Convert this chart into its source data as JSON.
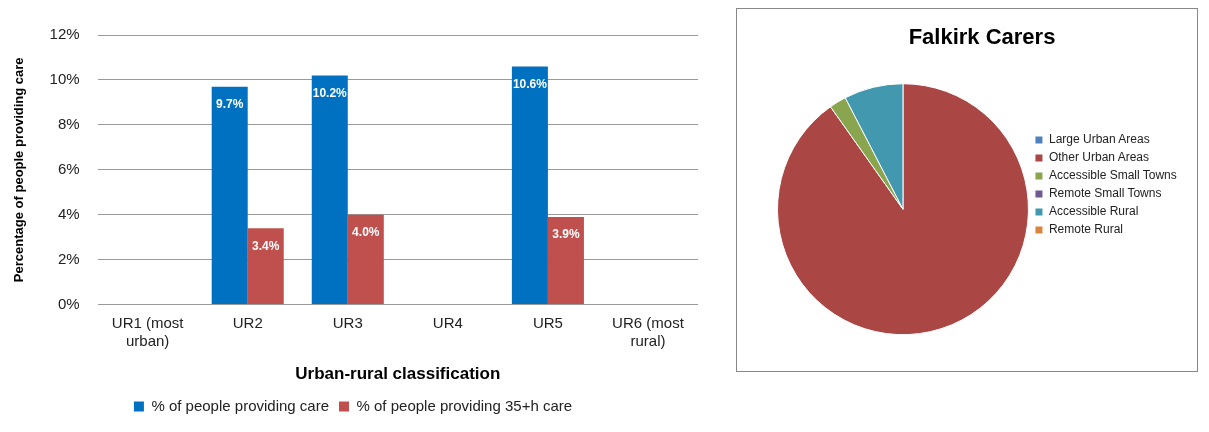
{
  "chart_data": [
    {
      "type": "bar",
      "xlabel": "Urban-rural classification",
      "ylabel": "Percentage of people providing care",
      "categories": [
        "UR1 (most urban)",
        "UR2",
        "UR3",
        "UR4",
        "UR5",
        "UR6 (most rural)"
      ],
      "series": [
        {
          "name": "% of people providing care",
          "color": "#0070c0",
          "values": [
            null,
            9.7,
            10.2,
            null,
            10.6,
            null
          ],
          "value_labels": [
            null,
            "9.7%",
            "10.2%",
            null,
            "10.6%",
            null
          ]
        },
        {
          "name": "% of people providing 35+h care",
          "color": "#c0504d",
          "values": [
            null,
            3.4,
            4.0,
            null,
            3.9,
            null
          ],
          "value_labels": [
            null,
            "3.4%",
            "4.0%",
            null,
            "3.9%",
            null
          ]
        }
      ],
      "ylim": [
        0,
        12
      ],
      "yticks": [
        {
          "value": 0,
          "label": "0%"
        },
        {
          "value": 2,
          "label": "2%"
        },
        {
          "value": 4,
          "label": "4%"
        },
        {
          "value": 6,
          "label": "6%"
        },
        {
          "value": 8,
          "label": "8%"
        },
        {
          "value": 10,
          "label": "10%"
        },
        {
          "value": 12,
          "label": "12%"
        }
      ],
      "grid": "y",
      "legend": "bottom"
    },
    {
      "type": "pie",
      "title": "Falkirk Carers",
      "categories": [
        "Large Urban Areas",
        "Other Urban Areas",
        "Accessible Small Towns",
        "Remote Small Towns",
        "Accessible Rural",
        "Remote Rural"
      ],
      "values": [
        0,
        90.2,
        2.2,
        0,
        7.6,
        0
      ],
      "colors": [
        "#4f81bd",
        "#aa4644",
        "#89a54e",
        "#71588f",
        "#4198af",
        "#db843d"
      ],
      "legend": "right"
    }
  ]
}
